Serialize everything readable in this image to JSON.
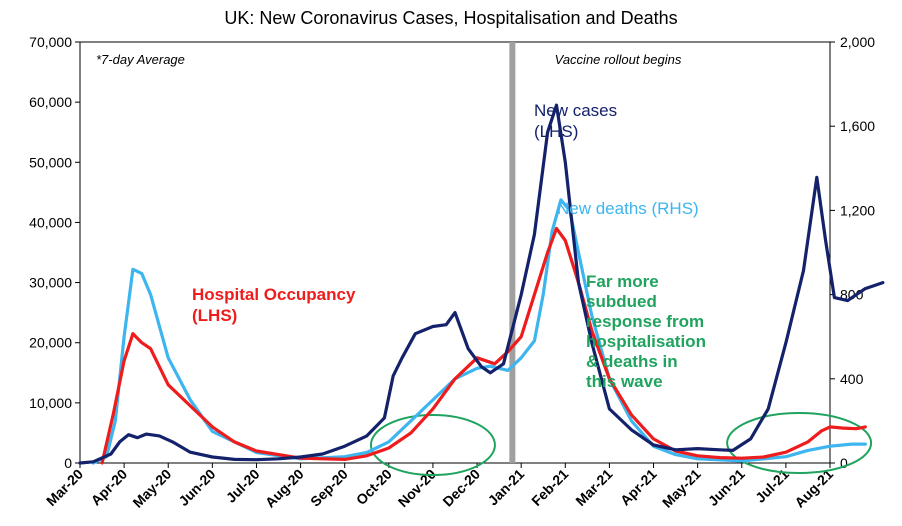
{
  "chart_data": {
    "type": "line",
    "title": "UK: New Coronavirus Cases, Hospitalisation and Deaths",
    "note": "*7-day Average",
    "x_labels": [
      "Mar-20",
      "Apr-20",
      "May-20",
      "Jun-20",
      "Jul-20",
      "Aug-20",
      "Sep-20",
      "Oct-20",
      "Nov-20",
      "Dec-20",
      "Jan-21",
      "Feb-21",
      "Mar-21",
      "Apr-21",
      "May-21",
      "Jun-21",
      "Jul-21",
      "Aug-21"
    ],
    "y_left": {
      "min": 0,
      "max": 70000,
      "ticks": [
        "0",
        "10,000",
        "20,000",
        "30,000",
        "40,000",
        "50,000",
        "60,000",
        "70,000"
      ]
    },
    "y_right": {
      "min": 0,
      "max": 2000,
      "ticks": [
        "0",
        "400",
        "800",
        "1,200",
        "1,600",
        "2,000"
      ]
    },
    "colors": {
      "cases": "#14216b",
      "hospital": "#ee1c1c",
      "deaths": "#3db5ef",
      "annotation": "#1fa35e",
      "vline": "#a0a0a0"
    },
    "series": [
      {
        "name": "New cases (LHS)",
        "axis": "left",
        "points": [
          [
            0,
            0
          ],
          [
            0.3,
            200
          ],
          [
            0.7,
            1500
          ],
          [
            0.9,
            3500
          ],
          [
            1.1,
            4700
          ],
          [
            1.3,
            4200
          ],
          [
            1.5,
            4800
          ],
          [
            1.8,
            4500
          ],
          [
            2.1,
            3500
          ],
          [
            2.5,
            1800
          ],
          [
            3,
            1000
          ],
          [
            3.5,
            600
          ],
          [
            4,
            550
          ],
          [
            4.5,
            700
          ],
          [
            5,
            1000
          ],
          [
            5.5,
            1500
          ],
          [
            6,
            2800
          ],
          [
            6.5,
            4500
          ],
          [
            6.9,
            7500
          ],
          [
            7.1,
            14500
          ],
          [
            7.3,
            17500
          ],
          [
            7.6,
            21500
          ],
          [
            8,
            22700
          ],
          [
            8.3,
            23000
          ],
          [
            8.5,
            25000
          ],
          [
            8.8,
            19000
          ],
          [
            9.1,
            16000
          ],
          [
            9.3,
            15000
          ],
          [
            9.6,
            16500
          ],
          [
            10,
            28000
          ],
          [
            10.3,
            38000
          ],
          [
            10.6,
            55000
          ],
          [
            10.8,
            59500
          ],
          [
            11,
            50000
          ],
          [
            11.3,
            30000
          ],
          [
            11.6,
            20000
          ],
          [
            12,
            9000
          ],
          [
            12.5,
            5500
          ],
          [
            13,
            3000
          ],
          [
            13.5,
            2200
          ],
          [
            14,
            2400
          ],
          [
            14.5,
            2200
          ],
          [
            14.8,
            2100
          ],
          [
            15.2,
            4000
          ],
          [
            15.6,
            9000
          ],
          [
            16,
            20000
          ],
          [
            16.4,
            32000
          ],
          [
            16.7,
            47500
          ],
          [
            16.9,
            37000
          ],
          [
            17.1,
            27500
          ],
          [
            17.4,
            27000
          ],
          [
            17.8,
            29000
          ],
          [
            18.2,
            30000
          ]
        ]
      },
      {
        "name": "Hospital Occupancy (LHS)",
        "axis": "left",
        "points": [
          [
            0.5,
            0
          ],
          [
            0.75,
            8000
          ],
          [
            1,
            17000
          ],
          [
            1.2,
            21500
          ],
          [
            1.4,
            20000
          ],
          [
            1.6,
            19000
          ],
          [
            2,
            13000
          ],
          [
            2.5,
            9500
          ],
          [
            3,
            6000
          ],
          [
            3.5,
            3500
          ],
          [
            4,
            2000
          ],
          [
            5,
            800
          ],
          [
            6,
            600
          ],
          [
            6.5,
            1200
          ],
          [
            7,
            2500
          ],
          [
            7.5,
            5000
          ],
          [
            8,
            9000
          ],
          [
            8.5,
            14000
          ],
          [
            9,
            17500
          ],
          [
            9.4,
            16500
          ],
          [
            9.7,
            18500
          ],
          [
            10,
            21000
          ],
          [
            10.3,
            28000
          ],
          [
            10.6,
            35000
          ],
          [
            10.8,
            39000
          ],
          [
            11,
            37000
          ],
          [
            11.3,
            30000
          ],
          [
            11.6,
            22000
          ],
          [
            12,
            14000
          ],
          [
            12.5,
            8000
          ],
          [
            13,
            4000
          ],
          [
            13.5,
            2000
          ],
          [
            14,
            1200
          ],
          [
            14.5,
            900
          ],
          [
            15,
            800
          ],
          [
            15.5,
            1000
          ],
          [
            16,
            1800
          ],
          [
            16.5,
            3500
          ],
          [
            16.8,
            5300
          ],
          [
            17,
            6000
          ],
          [
            17.3,
            5800
          ],
          [
            17.6,
            5700
          ],
          [
            17.8,
            6000
          ]
        ]
      },
      {
        "name": "New deaths (RHS)",
        "axis": "right",
        "points": [
          [
            0.3,
            0
          ],
          [
            0.6,
            30
          ],
          [
            0.8,
            200
          ],
          [
            1,
            600
          ],
          [
            1.2,
            920
          ],
          [
            1.4,
            900
          ],
          [
            1.6,
            800
          ],
          [
            2,
            500
          ],
          [
            2.5,
            300
          ],
          [
            3,
            150
          ],
          [
            4,
            50
          ],
          [
            5,
            20
          ],
          [
            6,
            30
          ],
          [
            6.5,
            50
          ],
          [
            7,
            100
          ],
          [
            7.5,
            200
          ],
          [
            8,
            300
          ],
          [
            8.5,
            400
          ],
          [
            9,
            450
          ],
          [
            9.3,
            460
          ],
          [
            9.7,
            440
          ],
          [
            10,
            500
          ],
          [
            10.3,
            580
          ],
          [
            10.5,
            800
          ],
          [
            10.7,
            1100
          ],
          [
            10.9,
            1250
          ],
          [
            11.1,
            1200
          ],
          [
            11.3,
            1000
          ],
          [
            11.6,
            700
          ],
          [
            12,
            400
          ],
          [
            12.5,
            200
          ],
          [
            13,
            80
          ],
          [
            13.5,
            40
          ],
          [
            14,
            20
          ],
          [
            15,
            10
          ],
          [
            16,
            30
          ],
          [
            16.5,
            60
          ],
          [
            17,
            80
          ],
          [
            17.5,
            90
          ],
          [
            17.8,
            90
          ]
        ]
      }
    ],
    "vline": {
      "x": 9.8,
      "label": "Vaccine rollout begins"
    },
    "annotations": [
      {
        "lines": [
          "New cases",
          "(LHS)"
        ],
        "color_key": "cases"
      },
      {
        "lines": [
          "New deaths (RHS)"
        ],
        "color_key": "deaths"
      },
      {
        "lines": [
          "Hospital Occupancy",
          "(LHS)"
        ],
        "color_key": "hospital"
      },
      {
        "lines": [
          "Far more",
          "subdued",
          "response from",
          "hospitalisation",
          "& deaths in",
          "this wave"
        ],
        "color_key": "annotation"
      }
    ],
    "highlights": [
      {
        "x_center": 8.0,
        "color_key": "annotation"
      },
      {
        "x_center": 16.3,
        "color_key": "annotation"
      }
    ]
  }
}
